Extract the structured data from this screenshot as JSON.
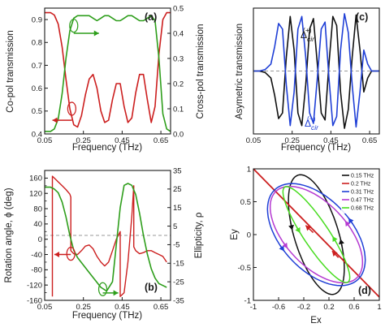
{
  "colors": {
    "red": "#cc1f1f",
    "green": "#2e9e1b",
    "black": "#111111",
    "blue": "#1f3fd6",
    "cyan": "#1ea3d8",
    "magenta": "#b53ad1",
    "lime": "#48dc20",
    "dashed": "#999999"
  },
  "chart_data": [
    {
      "panel": "a",
      "type": "line",
      "xlabel": "Frequency (THz)",
      "ylabel": "Co-pol transmission",
      "y2label": "Cross-pol transmission",
      "xlim": [
        0.05,
        0.7
      ],
      "ylim": [
        0.4,
        0.95
      ],
      "y2lim": [
        0.0,
        0.5
      ],
      "xticks": [
        "0.05",
        "0.25",
        "0.45",
        "0.65"
      ],
      "yticks": [
        "0.4",
        "0.5",
        "0.6",
        "0.7",
        "0.8",
        "0.9"
      ],
      "y2ticks": [
        "0.0",
        "0.1",
        "0.2",
        "0.3",
        "0.4",
        "0.5"
      ],
      "series": [
        {
          "color": "red",
          "axis": "left",
          "x": [
            0.05,
            0.08,
            0.1,
            0.12,
            0.14,
            0.16,
            0.18,
            0.2,
            0.22,
            0.24,
            0.26,
            0.28,
            0.3,
            0.32,
            0.34,
            0.36,
            0.38,
            0.4,
            0.42,
            0.44,
            0.46,
            0.48,
            0.5,
            0.52,
            0.54,
            0.56,
            0.58,
            0.6,
            0.62,
            0.64,
            0.66,
            0.68,
            0.7
          ],
          "y": [
            0.93,
            0.93,
            0.92,
            0.88,
            0.78,
            0.64,
            0.51,
            0.44,
            0.43,
            0.48,
            0.57,
            0.64,
            0.66,
            0.6,
            0.5,
            0.45,
            0.46,
            0.55,
            0.62,
            0.62,
            0.52,
            0.45,
            0.47,
            0.58,
            0.66,
            0.66,
            0.55,
            0.45,
            0.52,
            0.75,
            0.9,
            0.93,
            0.93
          ]
        },
        {
          "color": "green",
          "axis": "right",
          "x": [
            0.05,
            0.08,
            0.1,
            0.12,
            0.14,
            0.16,
            0.18,
            0.2,
            0.22,
            0.24,
            0.26,
            0.28,
            0.3,
            0.32,
            0.34,
            0.36,
            0.38,
            0.4,
            0.42,
            0.44,
            0.46,
            0.48,
            0.5,
            0.52,
            0.54,
            0.56,
            0.58,
            0.6,
            0.62,
            0.64,
            0.66,
            0.68,
            0.7
          ],
          "y": [
            0.01,
            0.01,
            0.02,
            0.06,
            0.16,
            0.3,
            0.41,
            0.46,
            0.47,
            0.47,
            0.47,
            0.47,
            0.46,
            0.45,
            0.46,
            0.47,
            0.47,
            0.46,
            0.45,
            0.45,
            0.46,
            0.47,
            0.47,
            0.46,
            0.45,
            0.45,
            0.46,
            0.47,
            0.45,
            0.3,
            0.08,
            0.02,
            0.01
          ]
        }
      ]
    },
    {
      "panel": "b",
      "type": "line",
      "xlabel": "Frequency (THz)",
      "ylabel": "Rotation angle, ϕ (deg)",
      "y2label": "Ellipticity, ρ",
      "xlim": [
        0.05,
        0.7
      ],
      "ylim": [
        -160,
        180
      ],
      "y2lim": [
        -35,
        35
      ],
      "xticks": [
        "0.05",
        "0.25",
        "0.45",
        "0.65"
      ],
      "yticks": [
        "-160",
        "-140",
        "-120",
        "-100",
        "-80",
        "-60",
        "-40",
        "-20",
        "0",
        "20",
        "40",
        "60",
        "80",
        "100",
        "120",
        "140",
        "160"
      ],
      "yticks_shown": [
        "-160",
        "-120",
        "-80",
        "-40",
        "0",
        "40",
        "80",
        "120",
        "160"
      ],
      "y2ticks": [
        "-35",
        "-25",
        "-15",
        "-5",
        "5",
        "15",
        "25",
        "35"
      ],
      "series": [
        {
          "color": "red",
          "axis": "left",
          "x": [
            0.09,
            0.09,
            0.1,
            0.12,
            0.14,
            0.16,
            0.18,
            0.185,
            0.185,
            0.2,
            0.22,
            0.24,
            0.26,
            0.28,
            0.3,
            0.32,
            0.34,
            0.36,
            0.38,
            0.4,
            0.42,
            0.44,
            0.44,
            0.46,
            0.48,
            0.5,
            0.51,
            0.51,
            0.52,
            0.54,
            0.56,
            0.58,
            0.6,
            0.62,
            0.64,
            0.66,
            0.68
          ],
          "y": [
            -150,
            165,
            160,
            150,
            140,
            130,
            118,
            110,
            -30,
            -38,
            -40,
            -30,
            -18,
            -15,
            -25,
            -45,
            -60,
            -70,
            -60,
            -30,
            0,
            20,
            -150,
            -140,
            -60,
            60,
            140,
            -20,
            -30,
            -38,
            -35,
            -30,
            -30,
            -35,
            -40,
            -45,
            -60
          ]
        },
        {
          "color": "green",
          "axis": "right",
          "x": [
            0.05,
            0.08,
            0.1,
            0.12,
            0.14,
            0.16,
            0.18,
            0.2,
            0.22,
            0.25,
            0.28,
            0.31,
            0.34,
            0.37,
            0.4,
            0.42,
            0.44,
            0.46,
            0.48,
            0.5,
            0.52,
            0.54,
            0.56,
            0.58,
            0.6,
            0.62,
            0.64,
            0.66,
            0.68
          ],
          "y": [
            26,
            26,
            25,
            23,
            18,
            10,
            0,
            -8,
            -12,
            -16,
            -20,
            -24,
            -28,
            -30,
            -25,
            -5,
            15,
            27,
            28,
            27,
            22,
            12,
            0,
            -10,
            -18,
            -23,
            -26,
            -27,
            -28
          ]
        }
      ]
    },
    {
      "panel": "c",
      "type": "line",
      "xlabel": "Frequency (THz)",
      "ylabel": "Asymetric transmission",
      "xlim": [
        0.05,
        0.7
      ],
      "ylim": [
        -0.9,
        0.9
      ],
      "xticks": [
        "0.05",
        "0.25",
        "0.45",
        "0.65"
      ],
      "series": [
        {
          "color": "black",
          "x": [
            0.05,
            0.08,
            0.11,
            0.14,
            0.16,
            0.18,
            0.2,
            0.22,
            0.24,
            0.26,
            0.28,
            0.3,
            0.32,
            0.34,
            0.36,
            0.38,
            0.4,
            0.42,
            0.44,
            0.46,
            0.48,
            0.5,
            0.52,
            0.54,
            0.56,
            0.58,
            0.6,
            0.62,
            0.64,
            0.66,
            0.68,
            0.7
          ],
          "y": [
            0,
            0,
            -0.02,
            -0.1,
            -0.35,
            -0.68,
            -0.6,
            0.2,
            0.78,
            0.3,
            -0.6,
            -0.78,
            -0.2,
            0.6,
            0.75,
            0.1,
            -0.6,
            -0.7,
            0.1,
            0.78,
            0.65,
            -0.3,
            -0.82,
            -0.55,
            0.2,
            0.8,
            0.3,
            -0.3,
            -0.1,
            0,
            0,
            0
          ]
        },
        {
          "color": "blue",
          "x": [
            0.05,
            0.08,
            0.11,
            0.14,
            0.16,
            0.18,
            0.2,
            0.22,
            0.24,
            0.26,
            0.28,
            0.3,
            0.32,
            0.34,
            0.36,
            0.38,
            0.4,
            0.42,
            0.44,
            0.46,
            0.48,
            0.5,
            0.52,
            0.54,
            0.56,
            0.58,
            0.6,
            0.62,
            0.64,
            0.66,
            0.68,
            0.7
          ],
          "y": [
            0,
            0,
            0.02,
            0.1,
            0.35,
            0.68,
            0.6,
            -0.2,
            -0.78,
            -0.3,
            0.6,
            0.78,
            0.2,
            -0.6,
            -0.75,
            -0.1,
            0.6,
            0.7,
            -0.1,
            -0.78,
            -0.65,
            0.3,
            0.82,
            0.55,
            -0.2,
            -0.8,
            -0.3,
            0.3,
            0.1,
            0,
            0,
            0
          ]
        }
      ],
      "annotations": [
        {
          "text": "Δcir(+)"
        },
        {
          "text": "Δcir(−)"
        }
      ]
    },
    {
      "panel": "d",
      "type": "line",
      "xlabel": "Ex",
      "ylabel": "Ey",
      "xlim": [
        -1,
        1
      ],
      "ylim": [
        -1,
        1
      ],
      "xticks": [
        "-1",
        "-0.6",
        "-0.2",
        "0.2",
        "0.6",
        "1"
      ],
      "yticks": [
        "-1",
        "-0.5",
        "0",
        "0.5",
        "1"
      ],
      "series": [
        {
          "name": "0.15 THz",
          "color": "black",
          "shape": "ellipse",
          "a": 0.95,
          "b": 0.35,
          "tilt_deg": -72,
          "cx": 0.0,
          "cy": 0.0
        },
        {
          "name": "0.2 THz",
          "color": "red",
          "shape": "line",
          "x": [
            -1,
            1
          ],
          "y": [
            1,
            -0.95
          ]
        },
        {
          "name": "0.31 THz",
          "color": "blue",
          "shape": "ellipse",
          "a": 0.95,
          "b": 0.55,
          "tilt_deg": -45,
          "cx": 0.0,
          "cy": 0.0
        },
        {
          "name": "0.47 THz",
          "color": "magenta",
          "shape": "ellipse",
          "a": 0.92,
          "b": 0.48,
          "tilt_deg": -45,
          "cx": 0.0,
          "cy": 0.0
        },
        {
          "name": "0.68 THz",
          "color": "lime",
          "shape": "ellipse",
          "a": 0.88,
          "b": 0.2,
          "tilt_deg": -55,
          "cx": 0.0,
          "cy": 0.0
        }
      ]
    }
  ],
  "panels": {
    "a": {
      "label": "(a)",
      "xlabel": "Frequency (THz)",
      "ylabel": "Co-pol transmission",
      "y2label": "Cross-pol transmission"
    },
    "b": {
      "label": "(b)",
      "xlabel": "Frequency (THz)",
      "ylabel": "Rotation angle, ϕ (deg)",
      "y2label": "Ellipticity, ρ"
    },
    "c": {
      "label": "(c)",
      "xlabel": "Frequency (THz)",
      "ylabel": "Asymetric transmission",
      "ann_plus": "Δ",
      "ann_plus_sub": "cir",
      "ann_plus_sup": "(+)",
      "ann_minus": "Δ",
      "ann_minus_sub": "cir",
      "ann_minus_sup": "(−)"
    },
    "d": {
      "label": "(d)",
      "xlabel": "Ex",
      "ylabel": "Ey"
    }
  }
}
